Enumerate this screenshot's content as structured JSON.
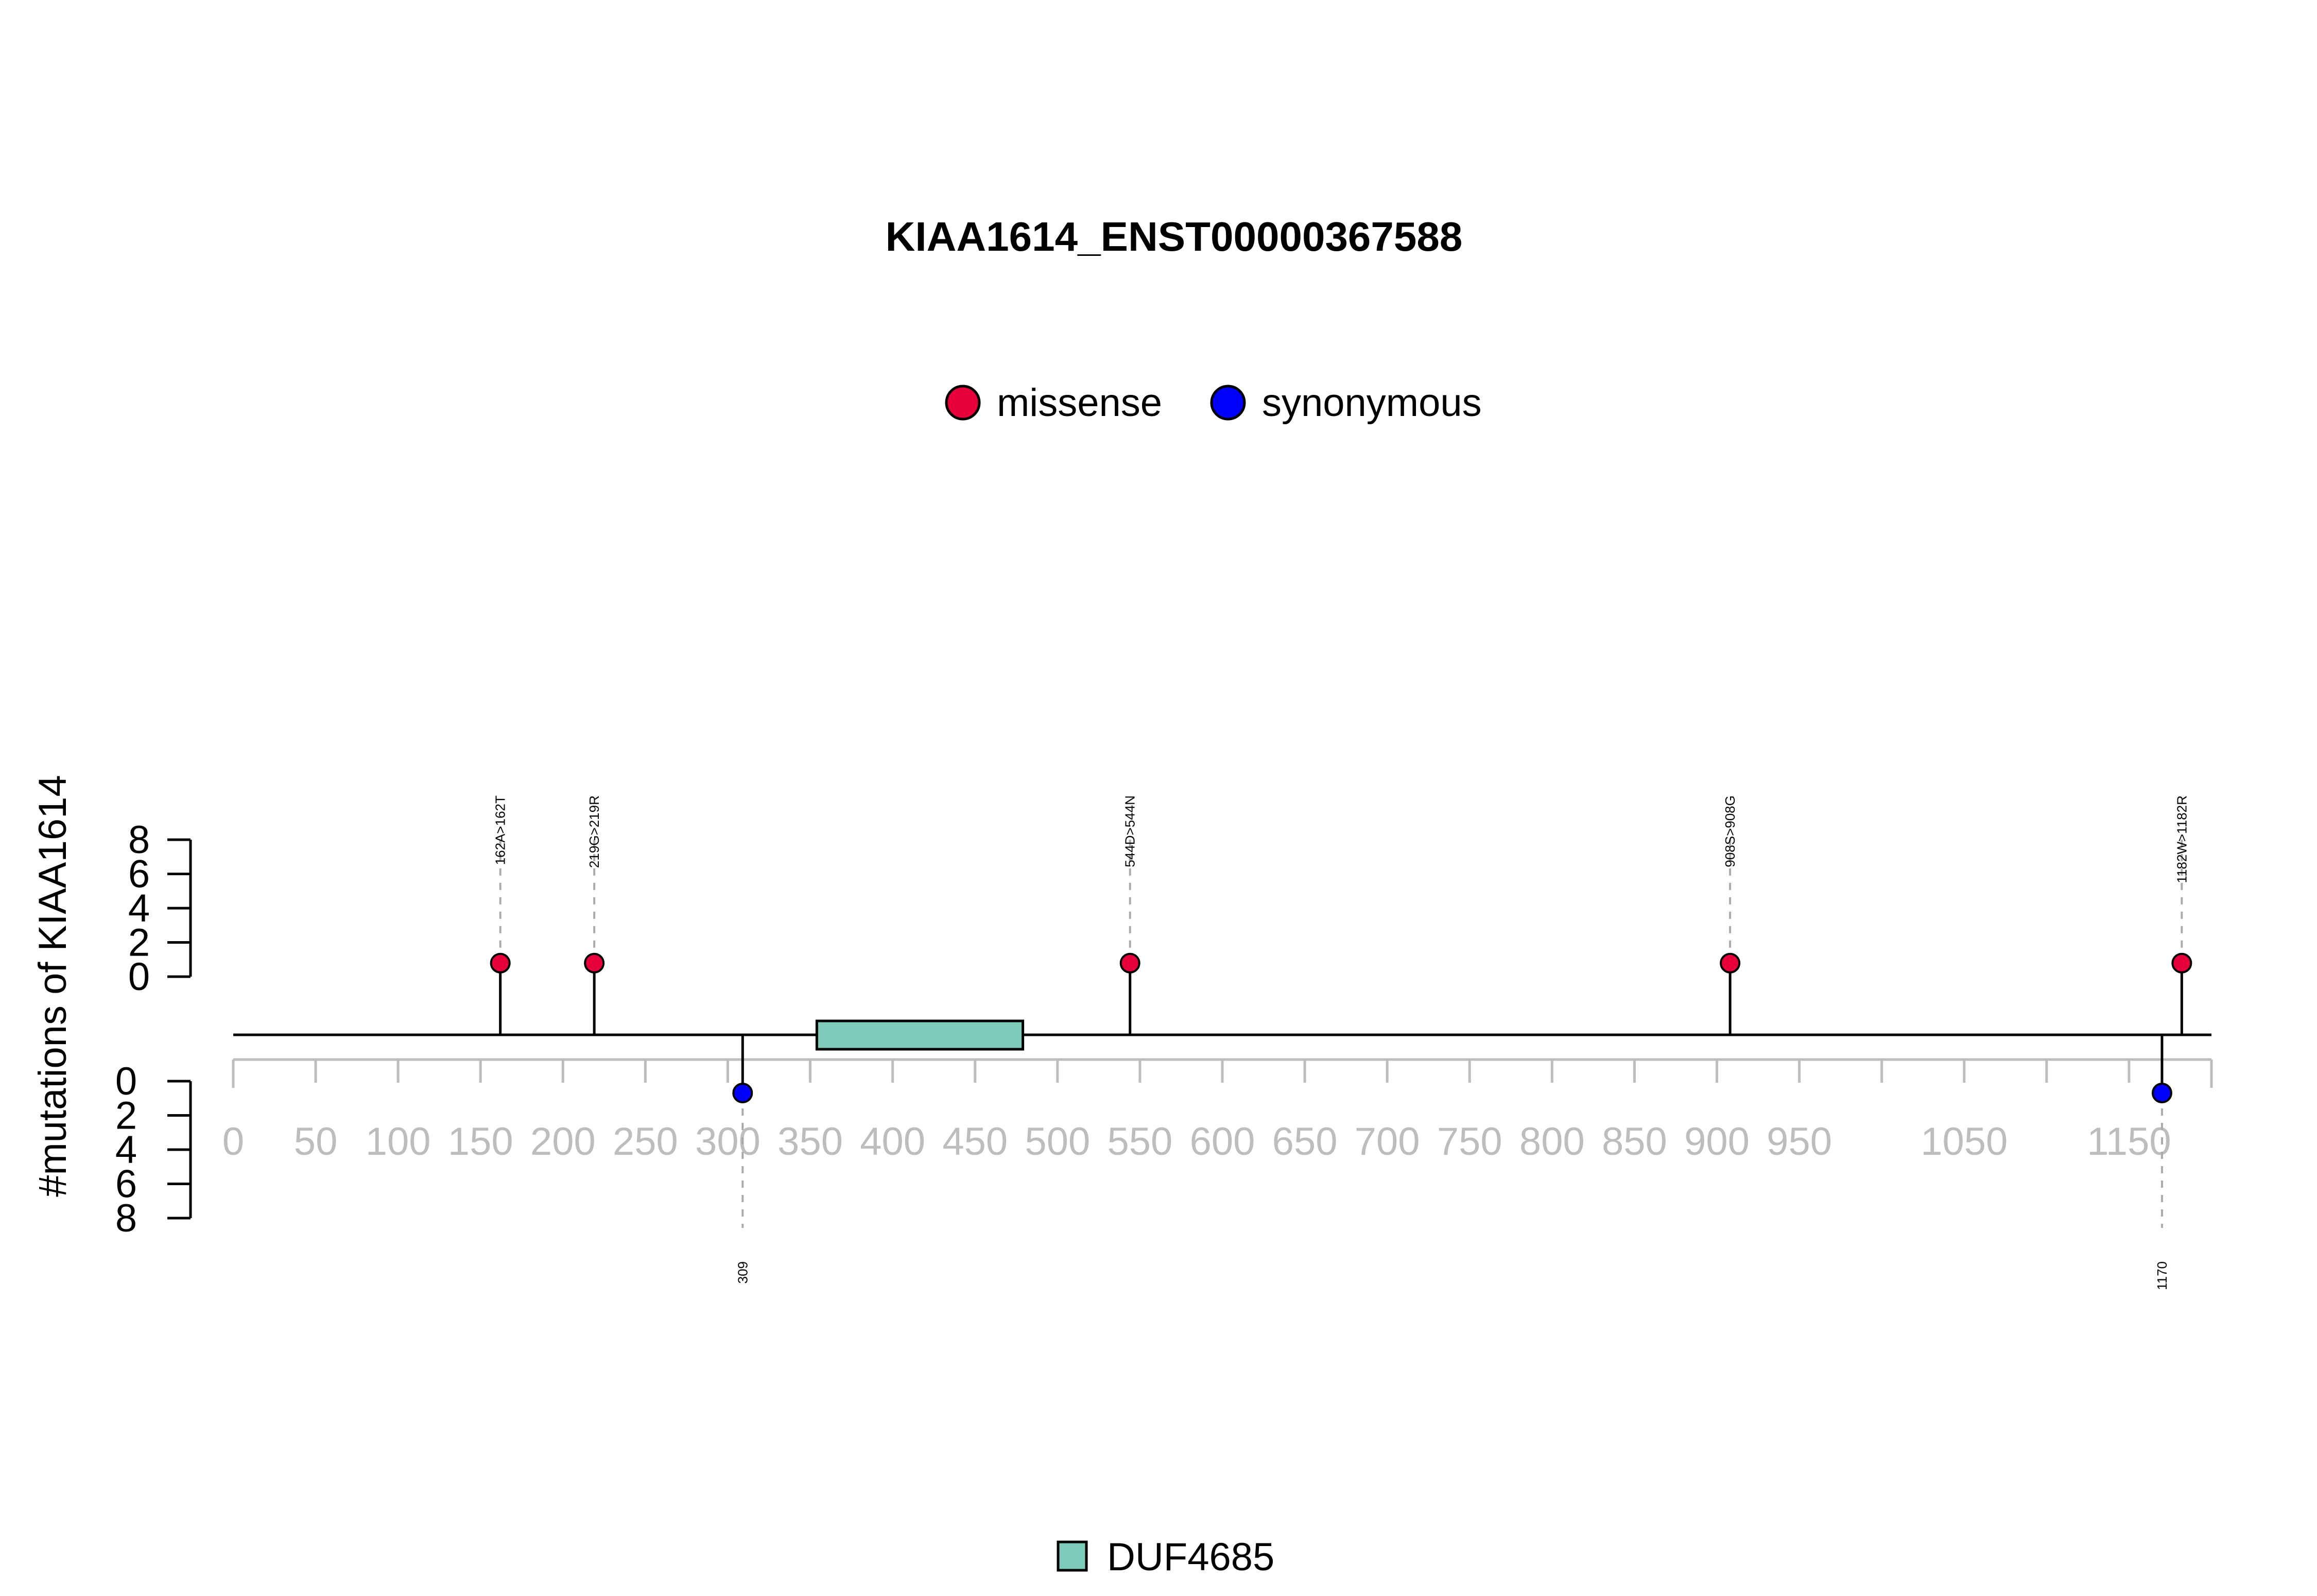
{
  "chart_data": {
    "type": "lollipop",
    "title": "KIAA1614_ENST00000367588",
    "ylabel": "#mutations of KIAA1614",
    "legend": [
      {
        "label": "missense",
        "color": "#e8003a"
      },
      {
        "label": "synonymous",
        "color": "#0000ff"
      }
    ],
    "x_ticks": [
      0,
      50,
      100,
      150,
      200,
      250,
      300,
      350,
      400,
      450,
      500,
      550,
      600,
      650,
      700,
      750,
      800,
      850,
      900,
      950,
      1050,
      1150
    ],
    "x_range": [
      0,
      1200
    ],
    "y_ticks_top": [
      0,
      2,
      4,
      6,
      8
    ],
    "y_ticks_bottom": [
      0,
      2,
      4,
      6,
      8
    ],
    "domains": [
      {
        "name": "DUF4685",
        "start": 354,
        "end": 479,
        "color": "#7fcbba"
      }
    ],
    "mutations_top": [
      {
        "pos": 162,
        "label": "162A>162T",
        "type": "missense",
        "count": 1
      },
      {
        "pos": 219,
        "label": "219G>219R",
        "type": "missense",
        "count": 1
      },
      {
        "pos": 544,
        "label": "544D>544N",
        "type": "missense",
        "count": 1
      },
      {
        "pos": 908,
        "label": "908S>908G",
        "type": "missense",
        "count": 1
      },
      {
        "pos": 1182,
        "label": "1182W>1182R",
        "type": "missense",
        "count": 1
      }
    ],
    "mutations_bottom": [
      {
        "pos": 309,
        "label": "309",
        "type": "synonymous",
        "count": 1
      },
      {
        "pos": 1170,
        "label": "1170",
        "type": "synonymous",
        "count": 1
      }
    ],
    "domain_legend": [
      {
        "label": "DUF4685",
        "color": "#7fcbba"
      }
    ]
  }
}
